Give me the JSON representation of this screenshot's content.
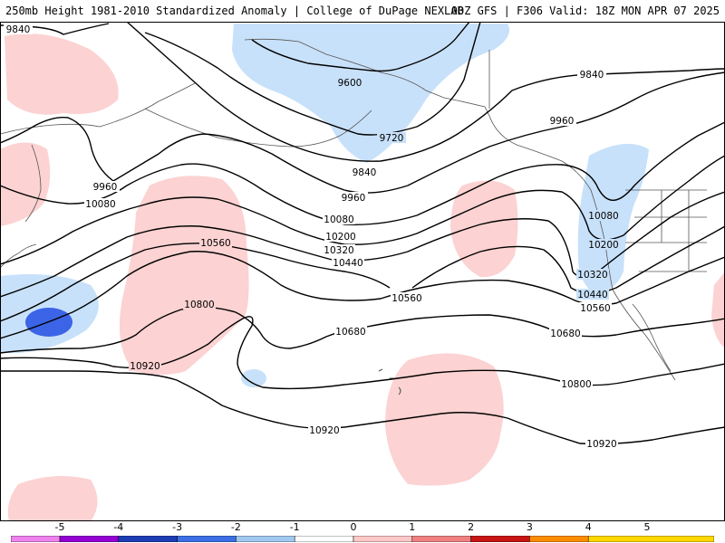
{
  "header": {
    "title_left": "250mb Height 1981-2010 Standardized Anomaly | College of DuPage NEXLAB",
    "title_right": "00Z GFS | F306 Valid: 18Z MON APR 07 2025"
  },
  "contour_labels": {
    "l9840_a": "9840",
    "l9600": "9600",
    "l9720": "9720",
    "l9840_b": "9840",
    "l9840_c": "9840",
    "l9960_a": "9960",
    "l9960_b": "9960",
    "l9960_c": "9960",
    "l10080_a": "10080",
    "l10080_b": "10080",
    "l10080_c": "10080",
    "l10200_a": "10200",
    "l10200_b": "10200",
    "l10320_a": "10320",
    "l10320_b": "10320",
    "l10440_a": "10440",
    "l10440_b": "10440",
    "l10560_a": "10560",
    "l10560_b": "10560",
    "l10560_c": "10560",
    "l10680_a": "10680",
    "l10680_b": "10680",
    "l10800_a": "10800",
    "l10800_b": "10800",
    "l10920_a": "10920",
    "l10920_b": "10920",
    "l10920_c": "10920"
  },
  "colorbar": {
    "ticks": [
      "-5",
      "-4",
      "-3",
      "-2",
      "-1",
      "0",
      "1",
      "2",
      "3",
      "4",
      "5"
    ],
    "colors": [
      "#ee82ee",
      "#9400d3",
      "#1e3cb4",
      "#3c6ee6",
      "#a0c8f0",
      "#ffffff",
      "#ffc8c8",
      "#f08080",
      "#c81414",
      "#ff8c00",
      "#ffd700"
    ]
  },
  "colors": {
    "negative_light": "#c8e1fa",
    "negative_mid": "#3c64e6",
    "positive_light": "#fcd2d2",
    "contour": "#000000",
    "coastline": "#555555"
  }
}
